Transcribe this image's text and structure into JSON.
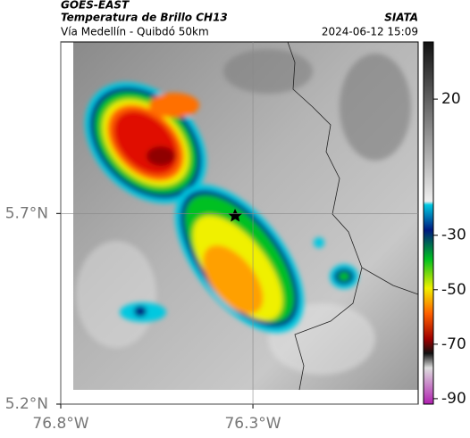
{
  "header": {
    "satellite": "GOES-EAST",
    "product": "Temperatura de Brillo CH13",
    "source": "SIATA",
    "route": "Vía Medellín - Quibdó 50km",
    "timestamp": "2024-06-12 15:09"
  },
  "map": {
    "xlim": [
      -76.8,
      -75.87
    ],
    "ylim": [
      5.2,
      6.15
    ],
    "xticks": [
      {
        "value": -76.8,
        "label": "76.8°W"
      },
      {
        "value": -76.3,
        "label": "76.3°W"
      }
    ],
    "yticks": [
      {
        "value": 5.7,
        "label": "5.7°N"
      },
      {
        "value": 5.2,
        "label": "5.2°N"
      }
    ],
    "grid": true
  },
  "colorbar": {
    "clim": [
      -92,
      41
    ],
    "ticks": [
      20,
      -30,
      -50,
      -70,
      -90
    ]
  }
}
